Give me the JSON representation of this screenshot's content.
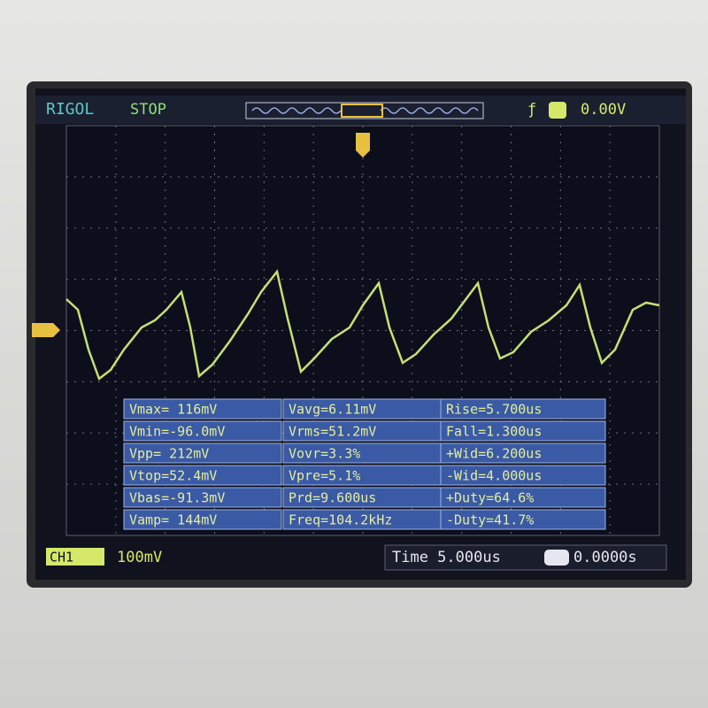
{
  "header": {
    "brand": "RIGOL",
    "status": "STOP",
    "trigger_level": "0.00V"
  },
  "measurements": {
    "rows": [
      [
        "Vmax= 116mV",
        "Vavg=6.11mV",
        "Rise=5.700us"
      ],
      [
        "Vmin=-96.0mV",
        "Vrms=51.2mV",
        "Fall=1.300us"
      ],
      [
        "Vpp= 212mV",
        "Vovr=3.3%",
        "+Wid=6.200us"
      ],
      [
        "Vtop=52.4mV",
        "Vpre=5.1%",
        "-Wid=4.000us"
      ],
      [
        "Vbas=-91.3mV",
        "Prd=9.600us",
        "+Duty=64.6%"
      ],
      [
        "Vamp= 144mV",
        "Freq=104.2kHz",
        "-Duty=41.7%"
      ]
    ]
  },
  "footer": {
    "channel": "CH1",
    "scale": "100mV",
    "timebase": "Time 5.000us",
    "offset": "0.0000s"
  }
}
